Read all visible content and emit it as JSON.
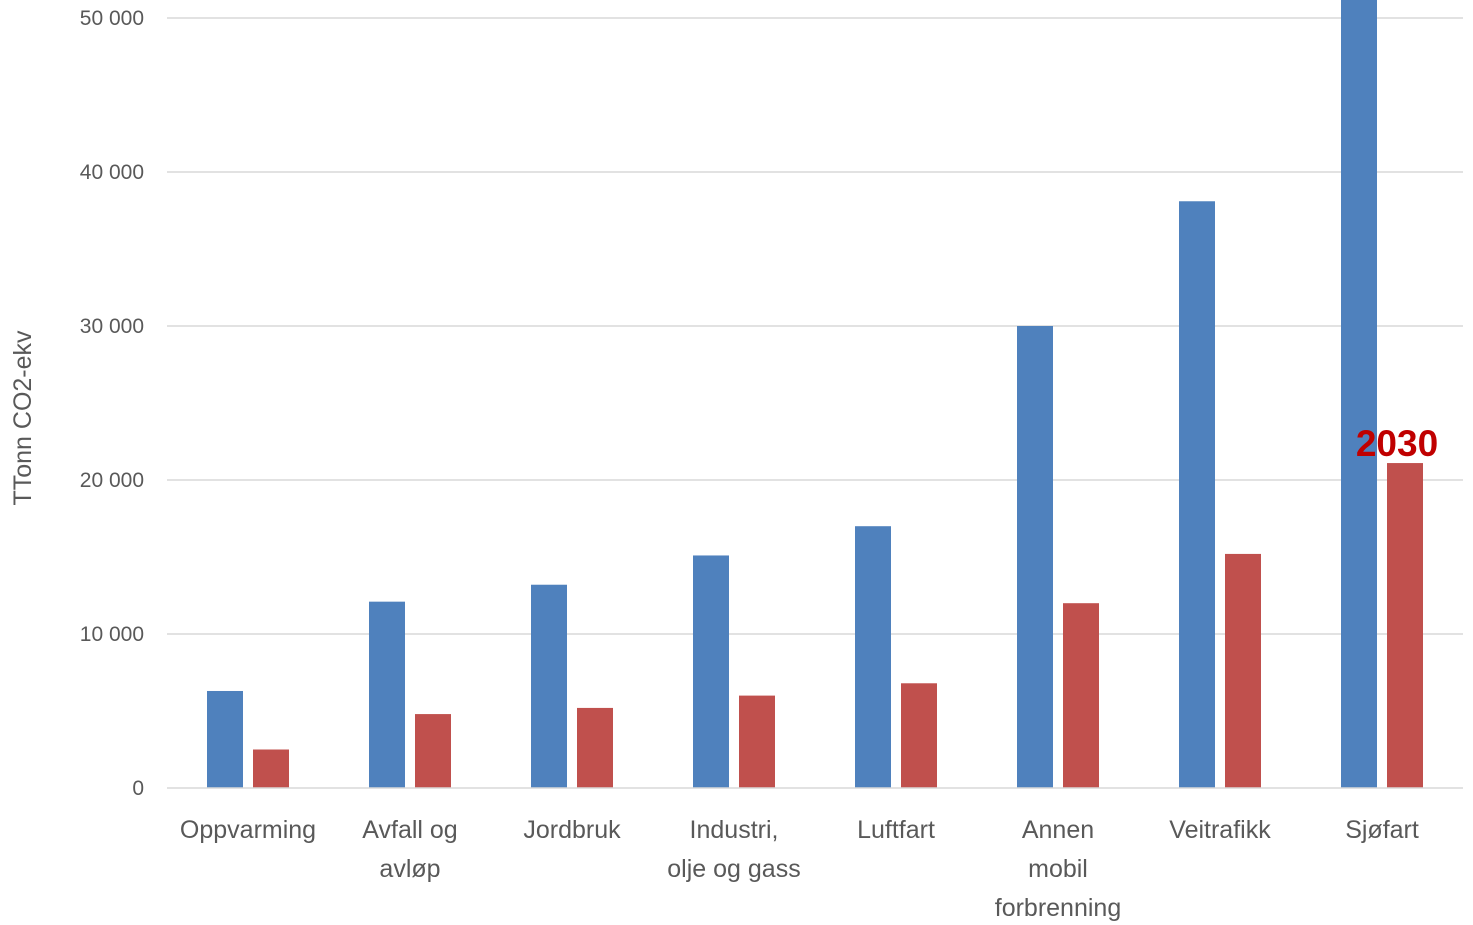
{
  "chart_data": {
    "type": "bar",
    "title": "",
    "xlabel": "",
    "ylabel": "TTonn CO2-ekv",
    "ylim": [
      0,
      51000
    ],
    "yticks": [
      0,
      10000,
      20000,
      30000,
      40000,
      50000
    ],
    "ytick_labels": [
      "0",
      "10 000",
      "20 000",
      "30 000",
      "40 000",
      "50 000"
    ],
    "grid": true,
    "legend": "none",
    "categories": [
      [
        "Oppvarming"
      ],
      [
        "Avfall og",
        "avløp"
      ],
      [
        "Jordbruk"
      ],
      [
        "Industri,",
        "olje og gass"
      ],
      [
        "Luftfart"
      ],
      [
        "Annen",
        "mobil",
        "forbrenning"
      ],
      [
        "Veitrafikk"
      ],
      [
        "Sjøfart"
      ]
    ],
    "series": [
      {
        "color": "#4f81bd",
        "values": [
          6300,
          12100,
          13200,
          15100,
          17000,
          30000,
          38100,
          51200
        ]
      },
      {
        "color": "#c0504d",
        "values": [
          2500,
          4800,
          5200,
          6000,
          6800,
          12000,
          15200,
          21100
        ]
      }
    ],
    "annotations": [
      {
        "text": "2030",
        "category_index": 7,
        "series_index": 1,
        "color": "#c00000"
      }
    ],
    "colors": {
      "gridline": "#d9d9d9",
      "axis_line": "#d9d9d9",
      "text": "#595959"
    }
  }
}
